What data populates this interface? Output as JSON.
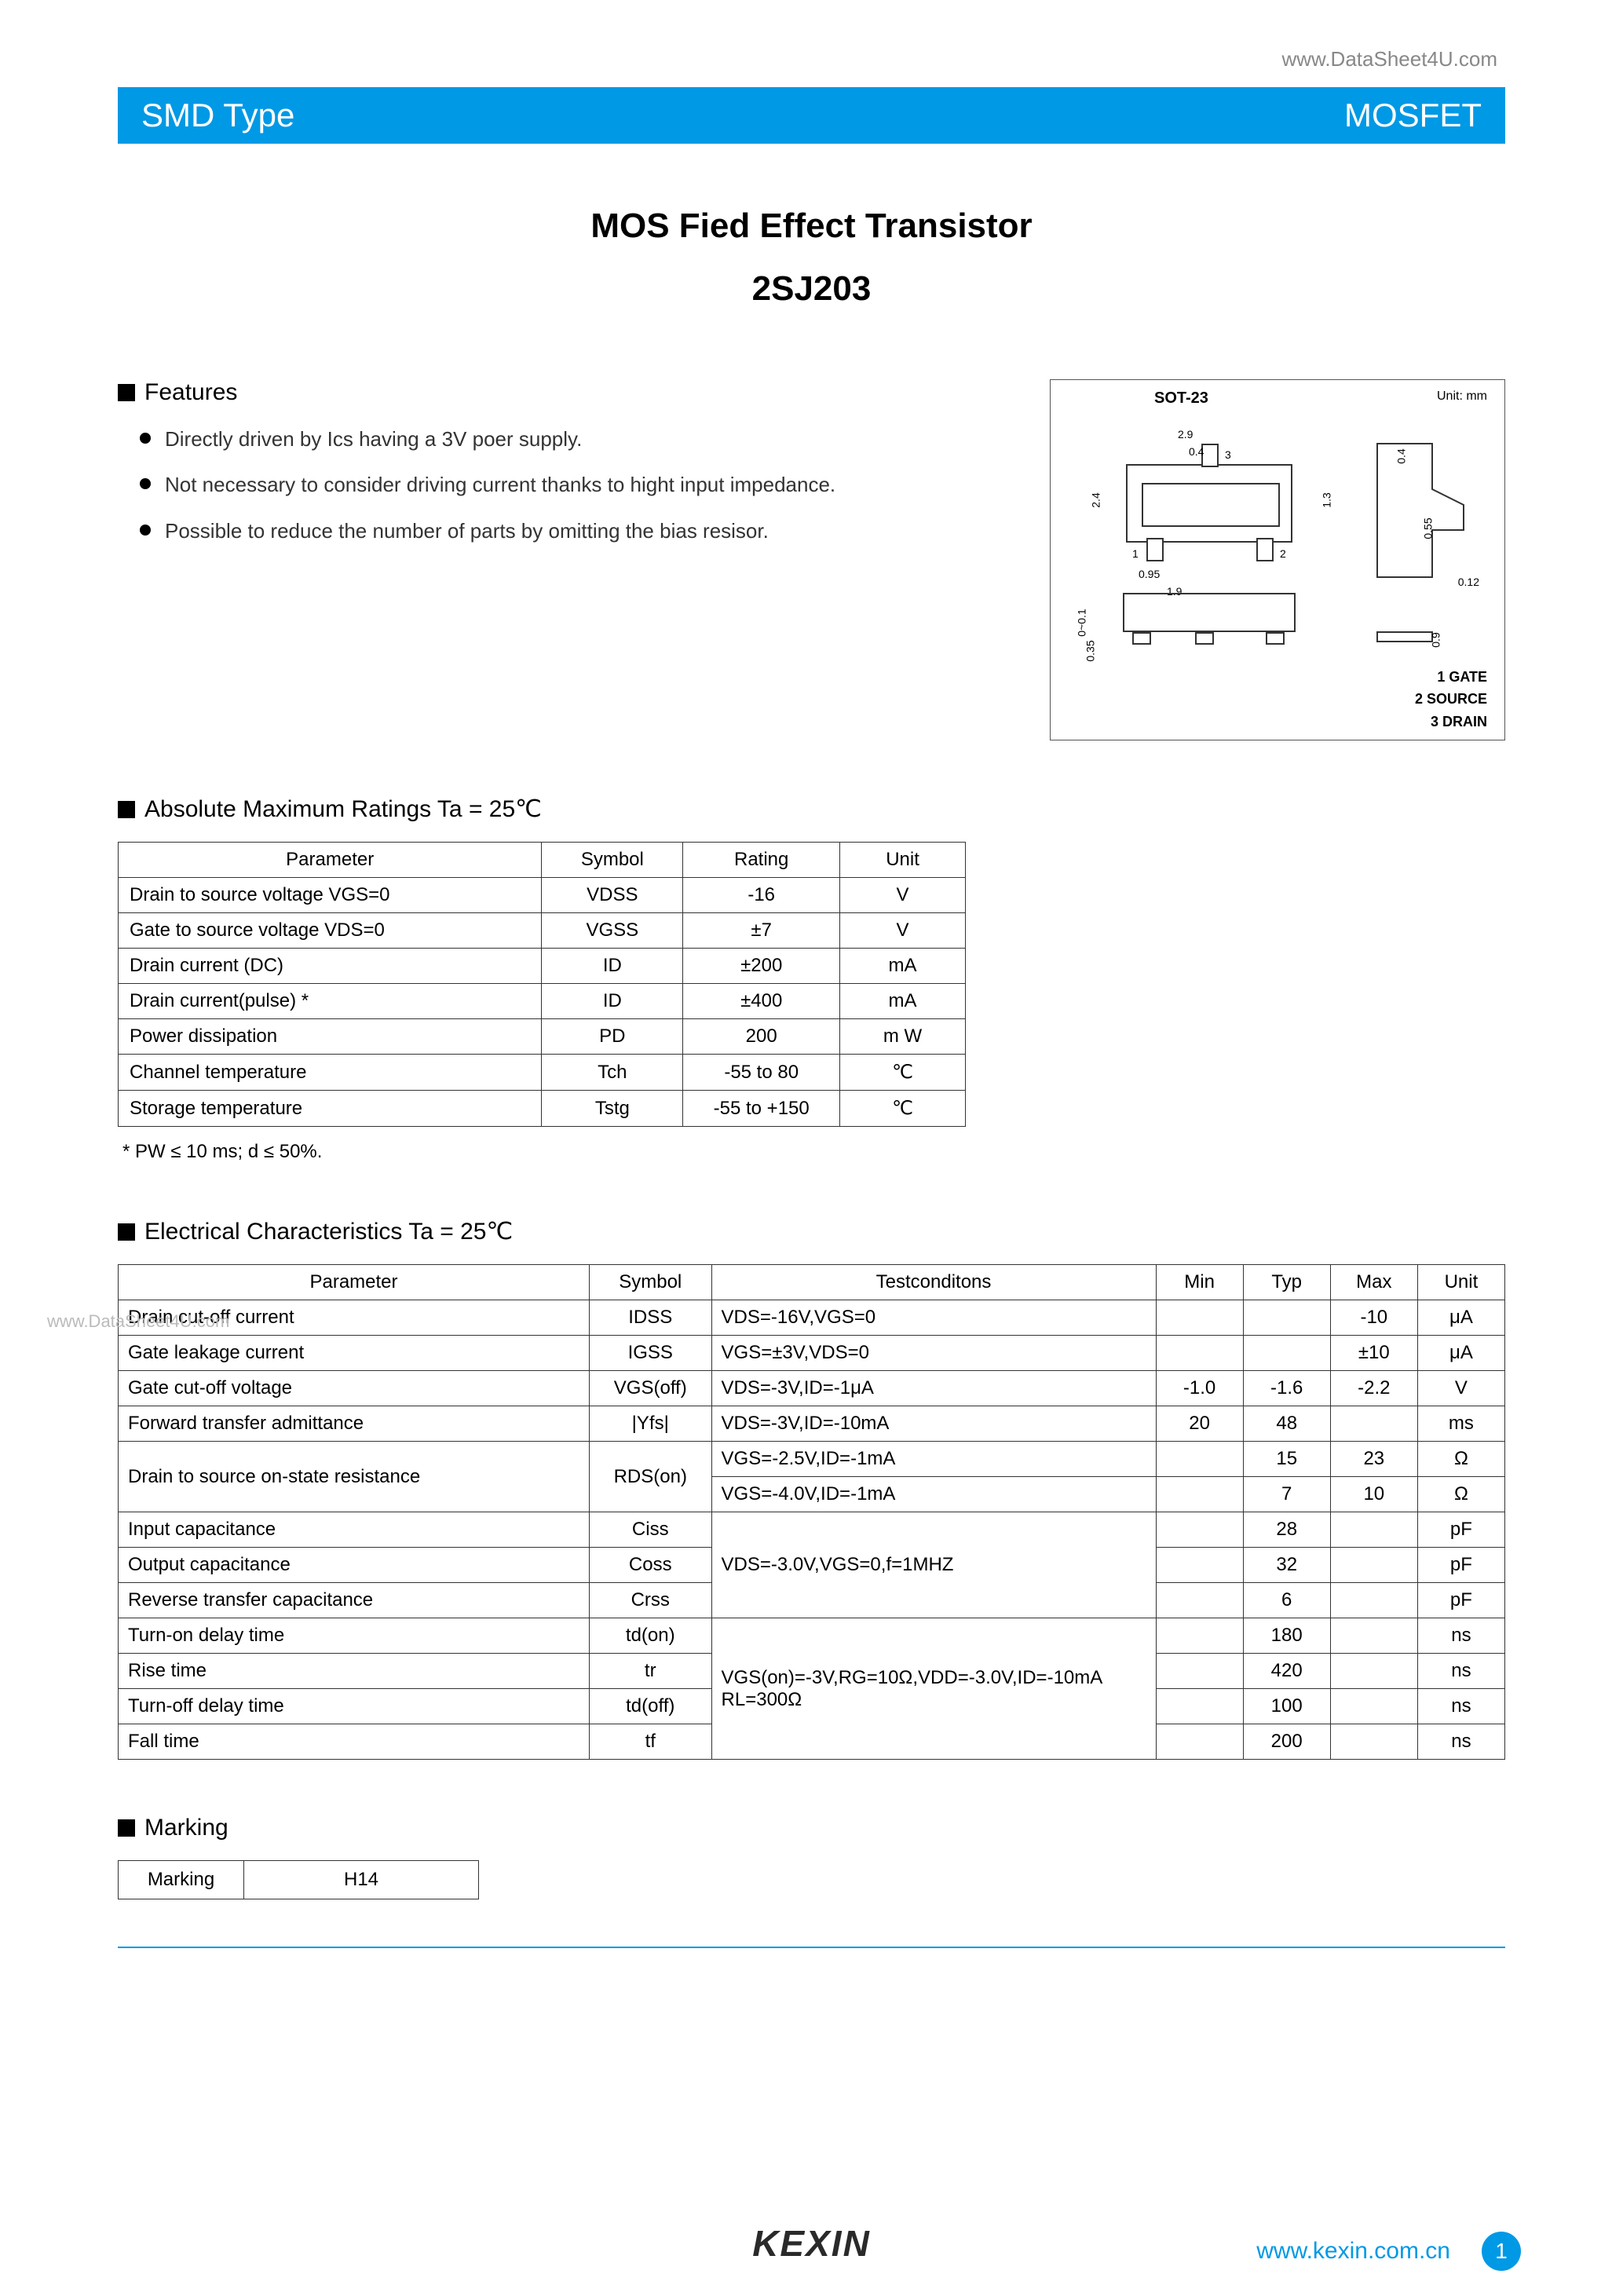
{
  "top_url": "www.DataSheet4U.com",
  "header": {
    "left": "SMD Type",
    "right": "MOSFET"
  },
  "title": "MOS Fied Effect Transistor",
  "part_number": "2SJ203",
  "features": {
    "heading": "Features",
    "items": [
      "Directly driven by Ics having a 3V poer supply.",
      "Not necessary to consider driving current thanks to hight input impedance.",
      "Possible to reduce the number of parts by omitting the bias resisor."
    ]
  },
  "package": {
    "name": "SOT-23",
    "unit_label": "Unit: mm",
    "dims": {
      "w_outer": "2.9",
      "w_lead": "0.4",
      "h_body": "2.4",
      "h_inner": "1.3",
      "pitch_half": "0.95",
      "pitch_full": "1.9",
      "side_h1": "0~0.1",
      "side_h2": "0.35",
      "right_top": "0.4",
      "right_mid": "0.55",
      "right_thk": "0.12",
      "right_inset": "0.9"
    },
    "pins": [
      "1 GATE",
      "2 SOURCE",
      "3 DRAIN"
    ]
  },
  "ratings": {
    "heading": "Absolute Maximum Ratings Ta = 25℃",
    "columns": [
      "Parameter",
      "Symbol",
      "Rating",
      "Unit"
    ],
    "rows": [
      {
        "param": "Drain to source voltage   VGS=0",
        "sym": "VDSS",
        "rating": "-16",
        "unit": "V"
      },
      {
        "param": "Gate to source voltage   VDS=0",
        "sym": "VGSS",
        "rating": "±7",
        "unit": "V"
      },
      {
        "param": "Drain current (DC)",
        "sym": "ID",
        "rating": "±200",
        "unit": "mA"
      },
      {
        "param": "Drain current(pulse)  *",
        "sym": "ID",
        "rating": "±400",
        "unit": "mA"
      },
      {
        "param": "Power dissipation",
        "sym": "PD",
        "rating": "200",
        "unit": "m W"
      },
      {
        "param": "Channel  temperature",
        "sym": "Tch",
        "rating": "-55 to 80",
        "unit": "℃"
      },
      {
        "param": "Storage temperature",
        "sym": "Tstg",
        "rating": "-55 to +150",
        "unit": "℃"
      }
    ],
    "footnote": "* PW ≤ 10 ms; d ≤ 50%."
  },
  "watermark_left": "www.DataSheet4U.com",
  "electrical": {
    "heading": "Electrical Characteristics Ta = 25℃",
    "columns": [
      "Parameter",
      "Symbol",
      "Testconditons",
      "Min",
      "Typ",
      "Max",
      "Unit"
    ],
    "rows": [
      {
        "param": "Drain cut-off current",
        "sym": "IDSS",
        "cond": "VDS=-16V,VGS=0",
        "min": "",
        "typ": "",
        "max": "-10",
        "unit": "μA"
      },
      {
        "param": "Gate leakage current",
        "sym": "IGSS",
        "cond": "VGS=±3V,VDS=0",
        "min": "",
        "typ": "",
        "max": "±10",
        "unit": "μA"
      },
      {
        "param": "Gate cut-off voltage",
        "sym": "VGS(off)",
        "cond": "VDS=-3V,ID=-1μA",
        "min": "-1.0",
        "typ": "-1.6",
        "max": "-2.2",
        "unit": "V"
      },
      {
        "param": "Forward transfer admittance",
        "sym": "|Yfs|",
        "cond": "VDS=-3V,ID=-10mA",
        "min": "20",
        "typ": "48",
        "max": "",
        "unit": "ms"
      }
    ],
    "rds_param": "Drain to source on-state resistance",
    "rds_sym": "RDS(on)",
    "rds_rows": [
      {
        "cond": "VGS=-2.5V,ID=-1mA",
        "min": "",
        "typ": "15",
        "max": "23",
        "unit": "Ω"
      },
      {
        "cond": "VGS=-4.0V,ID=-1mA",
        "min": "",
        "typ": "7",
        "max": "10",
        "unit": "Ω"
      }
    ],
    "cap_cond": "VDS=-3.0V,VGS=0,f=1MHZ",
    "cap_rows": [
      {
        "param": "Input capacitance",
        "sym": "Ciss",
        "min": "",
        "typ": "28",
        "max": "",
        "unit": "pF"
      },
      {
        "param": "Output capacitance",
        "sym": "Coss",
        "min": "",
        "typ": "32",
        "max": "",
        "unit": "pF"
      },
      {
        "param": "Reverse transfer capacitance",
        "sym": "Crss",
        "min": "",
        "typ": "6",
        "max": "",
        "unit": "pF"
      }
    ],
    "sw_cond": "VGS(on)=-3V,RG=10Ω,VDD=-3.0V,ID=-10mA RL=300Ω",
    "sw_rows": [
      {
        "param": "Turn-on delay time",
        "sym": "td(on)",
        "min": "",
        "typ": "180",
        "max": "",
        "unit": "ns"
      },
      {
        "param": "Rise time",
        "sym": "tr",
        "min": "",
        "typ": "420",
        "max": "",
        "unit": "ns"
      },
      {
        "param": "Turn-off delay time",
        "sym": "td(off)",
        "min": "",
        "typ": "100",
        "max": "",
        "unit": "ns"
      },
      {
        "param": "Fall time",
        "sym": "tf",
        "min": "",
        "typ": "200",
        "max": "",
        "unit": "ns"
      }
    ]
  },
  "marking": {
    "heading": "Marking",
    "label": "Marking",
    "value": "H14"
  },
  "footer": {
    "logo": "KEXIN",
    "url": "www.kexin.com.cn",
    "page": "1"
  },
  "colors": {
    "accent": "#0099e5",
    "text": "#000000",
    "muted": "#888888",
    "border": "#333333",
    "background": "#ffffff"
  }
}
